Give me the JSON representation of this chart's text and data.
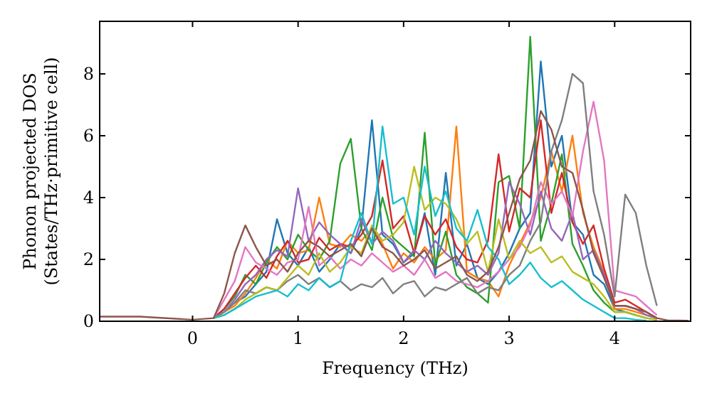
{
  "chart_data": {
    "type": "line",
    "xlabel": "Frequency (THz)",
    "ylabel": "Phonon projected DOS\n(States/THz·primitive cell)",
    "xlim": [
      -0.88,
      4.72
    ],
    "ylim": [
      0,
      9.7
    ],
    "xticks": [
      0,
      1,
      2,
      3,
      4
    ],
    "yticks": [
      0,
      2,
      4,
      6,
      8
    ],
    "grid": false,
    "marker": "none",
    "line_style": "solid",
    "x": [
      -0.88,
      -0.5,
      0,
      0.2,
      0.3,
      0.4,
      0.5,
      0.6,
      0.7,
      0.8,
      0.9,
      1.0,
      1.1,
      1.2,
      1.3,
      1.4,
      1.5,
      1.6,
      1.7,
      1.8,
      1.9,
      2.0,
      2.1,
      2.2,
      2.3,
      2.4,
      2.5,
      2.6,
      2.7,
      2.8,
      2.9,
      3.0,
      3.1,
      3.2,
      3.3,
      3.4,
      3.5,
      3.6,
      3.7,
      3.8,
      3.9,
      4.0,
      4.1,
      4.2,
      4.3,
      4.4,
      4.5,
      4.7
    ],
    "series": [
      {
        "color": "#1f77b4",
        "values": [
          null,
          null,
          null,
          null,
          0.3,
          0.6,
          0.8,
          1.2,
          1.6,
          3.3,
          2.2,
          1.8,
          2.4,
          1.6,
          2.0,
          2.5,
          2.2,
          3.0,
          6.5,
          2.8,
          2.5,
          1.9,
          2.2,
          3.5,
          1.5,
          4.8,
          1.8,
          2.5,
          1.4,
          1.2,
          1.6,
          2.2,
          3.0,
          3.5,
          8.4,
          5.0,
          6.0,
          3.2,
          2.8,
          1.5,
          1.2,
          0.4,
          0.3,
          0.2,
          null,
          null,
          null,
          null
        ]
      },
      {
        "color": "#ff7f0e",
        "values": [
          null,
          null,
          null,
          0.1,
          0.3,
          0.5,
          0.9,
          1.4,
          2.0,
          1.7,
          2.6,
          2.2,
          2.3,
          4.0,
          2.5,
          2.4,
          2.8,
          2.6,
          3.0,
          2.5,
          1.7,
          2.2,
          1.9,
          2.4,
          2.0,
          2.3,
          6.3,
          1.6,
          1.4,
          1.3,
          0.8,
          1.8,
          2.5,
          3.2,
          4.0,
          5.5,
          4.2,
          6.0,
          3.5,
          2.4,
          1.6,
          0.4,
          0.4,
          0.3,
          0.2,
          0.1,
          null,
          null
        ]
      },
      {
        "color": "#2ca02c",
        "values": [
          null,
          null,
          null,
          0.1,
          0.4,
          0.8,
          1.5,
          1.2,
          1.9,
          2.4,
          2.0,
          2.8,
          2.3,
          2.0,
          2.6,
          5.1,
          5.9,
          3.0,
          2.3,
          4.0,
          2.7,
          2.4,
          2.1,
          6.1,
          1.8,
          2.9,
          1.5,
          1.1,
          0.9,
          0.6,
          4.5,
          4.7,
          3.0,
          9.2,
          2.6,
          3.8,
          5.4,
          2.5,
          1.8,
          1.0,
          0.6,
          0.3,
          0.3,
          0.2,
          0.1,
          0.05,
          null,
          null
        ]
      },
      {
        "color": "#d62728",
        "values": [
          null,
          null,
          null,
          0.1,
          0.4,
          0.9,
          1.4,
          1.8,
          1.4,
          2.1,
          2.6,
          1.9,
          2.0,
          2.7,
          2.3,
          2.5,
          2.4,
          2.8,
          3.4,
          5.2,
          3.0,
          3.4,
          2.2,
          3.4,
          2.8,
          3.3,
          2.4,
          2.0,
          1.9,
          2.6,
          5.4,
          2.9,
          4.3,
          4.0,
          6.5,
          3.5,
          4.8,
          3.2,
          2.5,
          3.1,
          1.7,
          0.6,
          0.7,
          0.5,
          0.3,
          0.1,
          null,
          null
        ]
      },
      {
        "color": "#9467bd",
        "values": [
          null,
          null,
          null,
          0.1,
          0.3,
          0.7,
          1.2,
          1.5,
          2.0,
          2.3,
          2.1,
          4.3,
          2.6,
          3.2,
          2.8,
          2.5,
          2.2,
          3.3,
          2.5,
          2.9,
          2.6,
          1.9,
          2.3,
          2.0,
          2.6,
          2.2,
          1.9,
          1.6,
          1.8,
          1.5,
          2.2,
          4.5,
          3.8,
          2.8,
          4.2,
          3.0,
          2.6,
          3.5,
          2.0,
          2.3,
          1.5,
          0.5,
          0.5,
          0.4,
          0.2,
          0.1,
          null,
          null
        ]
      },
      {
        "color": "#e377c2",
        "values": [
          null,
          null,
          null,
          0.1,
          0.7,
          1.3,
          2.4,
          1.9,
          1.7,
          1.5,
          1.9,
          2.0,
          3.7,
          1.8,
          2.1,
          1.7,
          2.0,
          1.8,
          2.2,
          1.9,
          1.6,
          1.8,
          1.5,
          2.0,
          1.4,
          1.6,
          1.3,
          1.2,
          1.1,
          1.3,
          1.6,
          2.0,
          2.4,
          3.1,
          4.5,
          3.8,
          4.2,
          3.4,
          5.5,
          7.1,
          5.2,
          1.0,
          0.9,
          0.8,
          0.5,
          0.2,
          null,
          null
        ]
      },
      {
        "color": "#7f7f7f",
        "values": [
          null,
          null,
          null,
          0.1,
          0.3,
          0.6,
          1.0,
          0.9,
          1.1,
          1.0,
          1.3,
          1.5,
          1.2,
          1.4,
          1.1,
          1.3,
          1.0,
          1.2,
          1.1,
          1.4,
          0.9,
          1.2,
          1.3,
          0.8,
          1.1,
          1.0,
          1.2,
          1.4,
          0.9,
          1.1,
          1.0,
          1.5,
          1.8,
          2.6,
          3.2,
          5.5,
          6.5,
          8.0,
          7.7,
          4.2,
          2.8,
          0.8,
          4.1,
          3.5,
          1.8,
          0.5,
          null,
          null
        ]
      },
      {
        "color": "#bcbd22",
        "values": [
          null,
          null,
          null,
          0.1,
          0.2,
          0.4,
          0.7,
          0.9,
          1.1,
          1.0,
          1.4,
          1.8,
          1.5,
          2.2,
          1.6,
          1.9,
          2.4,
          2.2,
          3.1,
          2.6,
          2.8,
          3.2,
          5.0,
          3.6,
          4.0,
          3.8,
          3.3,
          2.5,
          2.9,
          1.6,
          3.3,
          2.0,
          2.6,
          2.2,
          2.4,
          1.9,
          2.1,
          1.6,
          1.4,
          1.2,
          0.8,
          0.3,
          0.3,
          0.2,
          0.1,
          0.05,
          null,
          null
        ]
      },
      {
        "color": "#17becf",
        "values": [
          null,
          null,
          null,
          0.1,
          0.2,
          0.4,
          0.6,
          0.8,
          0.9,
          1.0,
          0.8,
          1.2,
          1.0,
          1.4,
          1.1,
          1.3,
          2.6,
          3.5,
          2.5,
          6.3,
          3.8,
          4.0,
          2.8,
          5.0,
          3.4,
          4.2,
          3.0,
          2.6,
          3.6,
          2.4,
          2.0,
          1.2,
          1.5,
          1.9,
          1.4,
          1.1,
          1.3,
          1.0,
          0.7,
          0.5,
          0.3,
          0.1,
          0.1,
          0.05,
          0.02,
          null,
          null,
          null
        ]
      },
      {
        "color": "#8c564b",
        "values": [
          0.15,
          0.15,
          0.05,
          0.1,
          0.9,
          2.2,
          3.1,
          2.4,
          1.8,
          2.0,
          1.6,
          2.2,
          2.6,
          2.4,
          2.1,
          2.3,
          2.5,
          2.1,
          3.0,
          2.4,
          2.2,
          1.8,
          2.0,
          2.3,
          1.7,
          1.9,
          2.1,
          1.5,
          1.3,
          1.6,
          2.4,
          3.5,
          4.6,
          5.2,
          6.8,
          6.2,
          5.0,
          4.8,
          3.6,
          2.2,
          1.4,
          0.5,
          0.5,
          0.4,
          0.3,
          0.1,
          0.03,
          0.02
        ]
      }
    ]
  }
}
